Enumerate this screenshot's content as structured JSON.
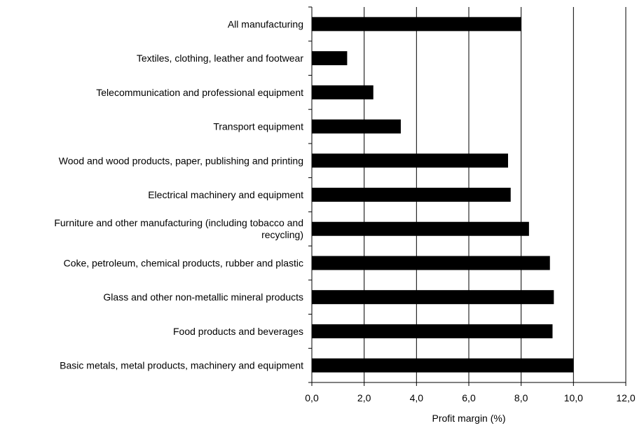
{
  "chart_data": {
    "type": "bar",
    "orientation": "horizontal",
    "title": "",
    "xlabel": "Profit margin (%)",
    "ylabel": "",
    "xlim": [
      0,
      12
    ],
    "x_ticks": [
      "0,0",
      "2,0",
      "4,0",
      "6,0",
      "8,0",
      "10,0",
      "12,0"
    ],
    "grid": "vertical",
    "bar_color": "#000000",
    "categories": [
      [
        "All manufacturing"
      ],
      [
        "Textiles, clothing, leather and footwear"
      ],
      [
        "Telecommunication and professional equipment"
      ],
      [
        "Transport equipment"
      ],
      [
        "Wood and wood products, paper, publishing and printing"
      ],
      [
        "Electrical machinery and equipment"
      ],
      [
        "Furniture and other manufacturing (including tobacco and",
        "recycling)"
      ],
      [
        "Coke, petroleum, chemical products, rubber and plastic"
      ],
      [
        "Glass and other non-metallic mineral products"
      ],
      [
        "Food products and beverages"
      ],
      [
        "Basic metals, metal products, machinery and equipment"
      ]
    ],
    "values": [
      8.0,
      1.35,
      2.35,
      3.4,
      7.5,
      7.6,
      8.3,
      9.1,
      9.25,
      9.2,
      10.0
    ]
  }
}
